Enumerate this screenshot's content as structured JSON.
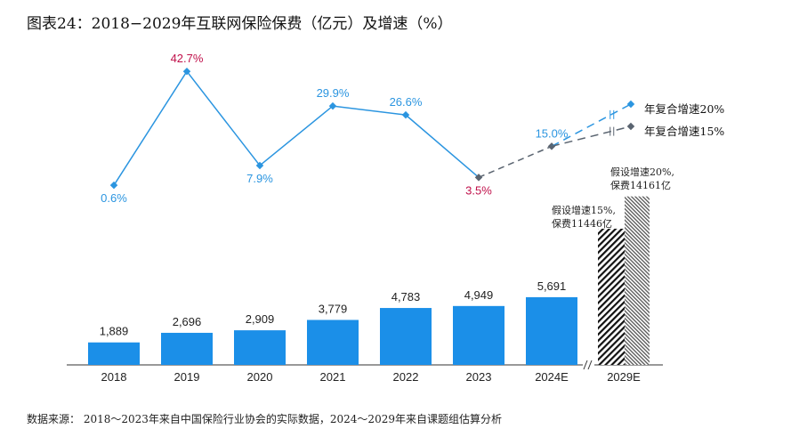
{
  "title": "图表24：2018−2029年互联网保险保费（亿元）及增速（%）",
  "source": "数据来源：  2018～2023年来自中国保险行业协会的实际数据，2024～2029年来自课题组估算分析",
  "colors": {
    "bar": "#1b8fe8",
    "line": "#2b95e0",
    "projection_gray": "#5a6470",
    "highlight_label": "#c0104a"
  },
  "chart_data": {
    "type": "bar+line",
    "categories": [
      "2018",
      "2019",
      "2020",
      "2021",
      "2022",
      "2023",
      "2024E",
      "2029E"
    ],
    "bars": {
      "values": [
        1889,
        2696,
        2909,
        3779,
        4783,
        4949,
        5691
      ],
      "labels": [
        "1,889",
        "2,696",
        "2,909",
        "3,779",
        "4,783",
        "4,949",
        "5,691"
      ]
    },
    "projection_2029": [
      {
        "scenario_rate": "15%",
        "value": 11446,
        "pattern": "dark-hatch",
        "label_lines": [
          "假设增速15%,",
          "保费11446亿"
        ]
      },
      {
        "scenario_rate": "20%",
        "value": 14161,
        "pattern": "light-hatch",
        "label_lines": [
          "假设增速20%,",
          "保费14161亿"
        ]
      }
    ],
    "growth": {
      "values": [
        0.6,
        42.7,
        7.9,
        29.9,
        26.6,
        3.5,
        15.0
      ],
      "labels": [
        "0.6%",
        "42.7%",
        "7.9%",
        "29.9%",
        "26.6%",
        "3.5%",
        "15.0%"
      ],
      "label_colors": [
        "blue",
        "red",
        "blue",
        "blue",
        "blue",
        "red",
        "blue"
      ]
    },
    "cagr_lines": [
      {
        "label": "年复合增速20%",
        "style": "dashed-blue"
      },
      {
        "label": "年复合增速15%",
        "style": "dashed-gray"
      }
    ],
    "axis_break": true,
    "grid": false,
    "yaxis_visible": false
  }
}
